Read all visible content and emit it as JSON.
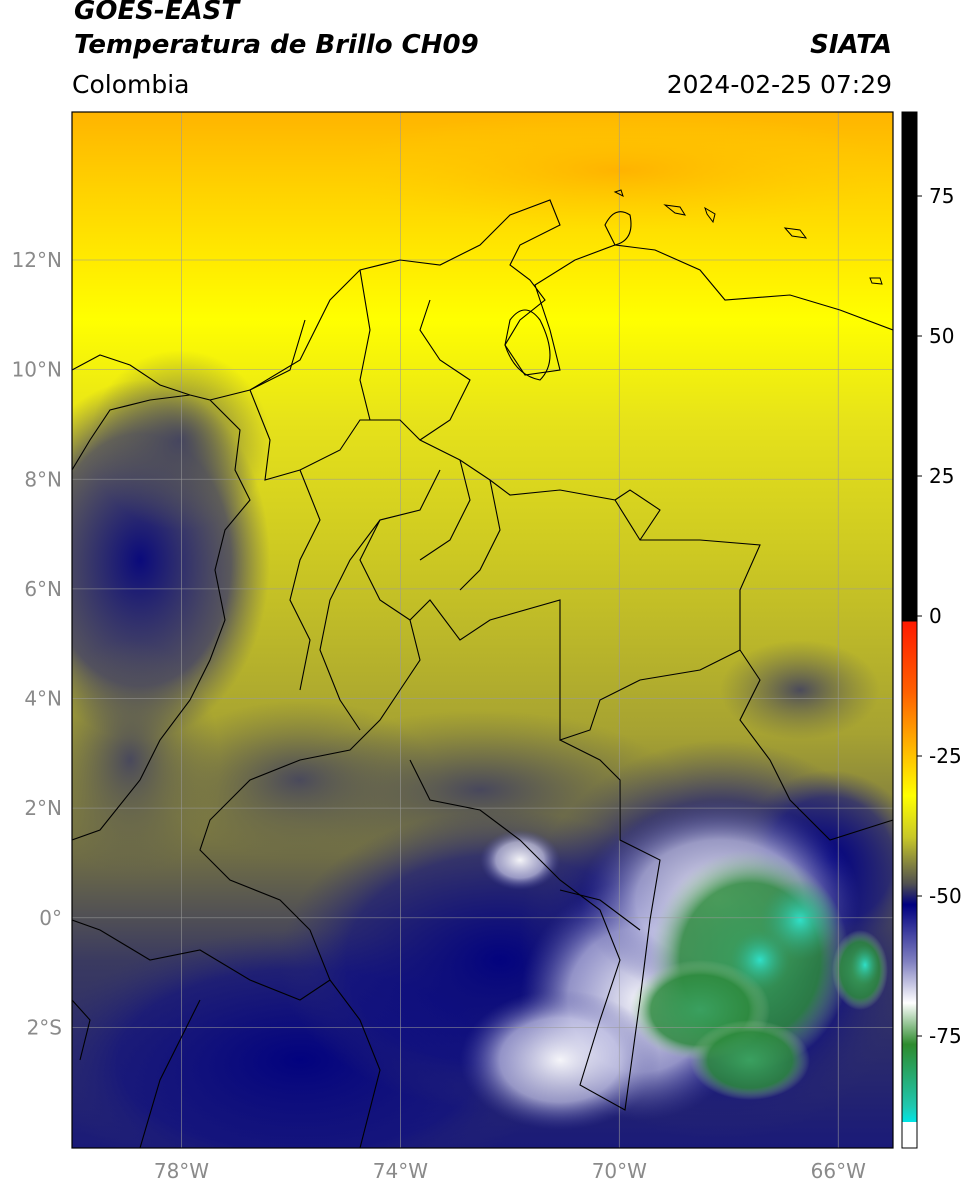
{
  "header": {
    "satellite": "GOES-EAST",
    "product": "Temperatura de Brillo CH09",
    "region": "Colombia",
    "agency": "SIATA",
    "datetime": "2024-02-25 07:29"
  },
  "map": {
    "lon_ticks": [
      {
        "value": -78,
        "label": "78°W"
      },
      {
        "value": -74,
        "label": "74°W"
      },
      {
        "value": -70,
        "label": "70°W"
      },
      {
        "value": -66,
        "label": "66°W"
      }
    ],
    "lat_ticks": [
      {
        "value": 12,
        "label": "12°N"
      },
      {
        "value": 10,
        "label": "10°N"
      },
      {
        "value": 8,
        "label": "8°N"
      },
      {
        "value": 6,
        "label": "6°N"
      },
      {
        "value": 4,
        "label": "4°N"
      },
      {
        "value": 2,
        "label": "2°N"
      },
      {
        "value": 0,
        "label": "0°"
      },
      {
        "value": -2,
        "label": "2°S"
      }
    ],
    "extent": {
      "lon_min": -80,
      "lon_max": -65,
      "lat_min": -4.2,
      "lat_max": 14.7
    }
  },
  "colorbar": {
    "range": [
      -95,
      90
    ],
    "ticks": [
      {
        "value": 75,
        "label": "75"
      },
      {
        "value": 50,
        "label": "50"
      },
      {
        "value": 25,
        "label": "25"
      },
      {
        "value": 0,
        "label": "0"
      },
      {
        "value": -25,
        "label": "-25"
      },
      {
        "value": -50,
        "label": "-50"
      },
      {
        "value": -75,
        "label": "-75"
      }
    ],
    "colors": {
      "black": "#000000",
      "red": "#ff1a00",
      "orange": "#ffa000",
      "yellow": "#ffff00",
      "olive": "#9a9a30",
      "gray": "#505050",
      "navy": "#000080",
      "white": "#ffffff",
      "green": "#2e8b2e",
      "cyan": "#00e5e5"
    }
  }
}
